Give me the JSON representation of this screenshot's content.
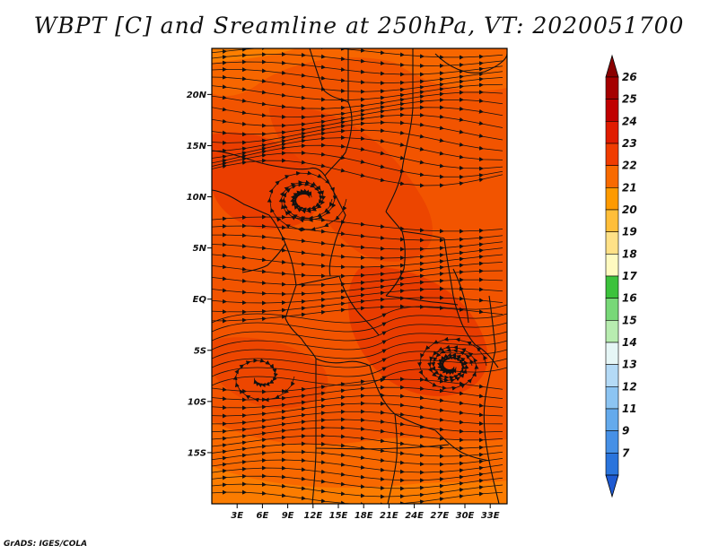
{
  "title": "WBPT [C] and Sreamline at 250hPa, VT: 2020051700",
  "credit": "GrADS: IGES/COLA",
  "map": {
    "field": "Wet-bulb potential temperature (C)",
    "level": "250hPa",
    "valid_time": "2020051700",
    "lon_range": [
      0,
      35
    ],
    "lat_range": [
      -20,
      24.5
    ],
    "x_ticks": [
      {
        "value": 3,
        "label": "3E"
      },
      {
        "value": 6,
        "label": "6E"
      },
      {
        "value": 9,
        "label": "9E"
      },
      {
        "value": 12,
        "label": "12E"
      },
      {
        "value": 15,
        "label": "15E"
      },
      {
        "value": 18,
        "label": "18E"
      },
      {
        "value": 21,
        "label": "21E"
      },
      {
        "value": 24,
        "label": "24E"
      },
      {
        "value": 27,
        "label": "27E"
      },
      {
        "value": 30,
        "label": "30E"
      },
      {
        "value": 33,
        "label": "33E"
      }
    ],
    "y_ticks": [
      {
        "value": 20,
        "label": "20N"
      },
      {
        "value": 15,
        "label": "15N"
      },
      {
        "value": 10,
        "label": "10N"
      },
      {
        "value": 5,
        "label": "5N"
      },
      {
        "value": 0,
        "label": "EQ"
      },
      {
        "value": -5,
        "label": "5S"
      },
      {
        "value": -10,
        "label": "10S"
      },
      {
        "value": -15,
        "label": "15S"
      }
    ]
  },
  "colorbar": {
    "levels": [
      {
        "label": "26",
        "color": "#a50000"
      },
      {
        "label": "25",
        "color": "#c00000"
      },
      {
        "label": "24",
        "color": "#e01c00"
      },
      {
        "label": "23",
        "color": "#f03c00"
      },
      {
        "label": "22",
        "color": "#f86a00"
      },
      {
        "label": "21",
        "color": "#fe9a00"
      },
      {
        "label": "20",
        "color": "#ffbe3a"
      },
      {
        "label": "19",
        "color": "#ffe187"
      },
      {
        "label": "18",
        "color": "#fffac0"
      },
      {
        "label": "17",
        "color": "#3cc23c"
      },
      {
        "label": "16",
        "color": "#78d878"
      },
      {
        "label": "15",
        "color": "#b8ecb0"
      },
      {
        "label": "14",
        "color": "#e6f6f6"
      },
      {
        "label": "13",
        "color": "#b4daf6"
      },
      {
        "label": "12",
        "color": "#8cc4f2"
      },
      {
        "label": "11",
        "color": "#64aaec"
      },
      {
        "label": "9",
        "color": "#4690e6"
      },
      {
        "label": "7",
        "color": "#2a74dc"
      }
    ],
    "top_arrow_color": "#8a0000",
    "bottom_arrow_color": "#1e5ad2"
  }
}
